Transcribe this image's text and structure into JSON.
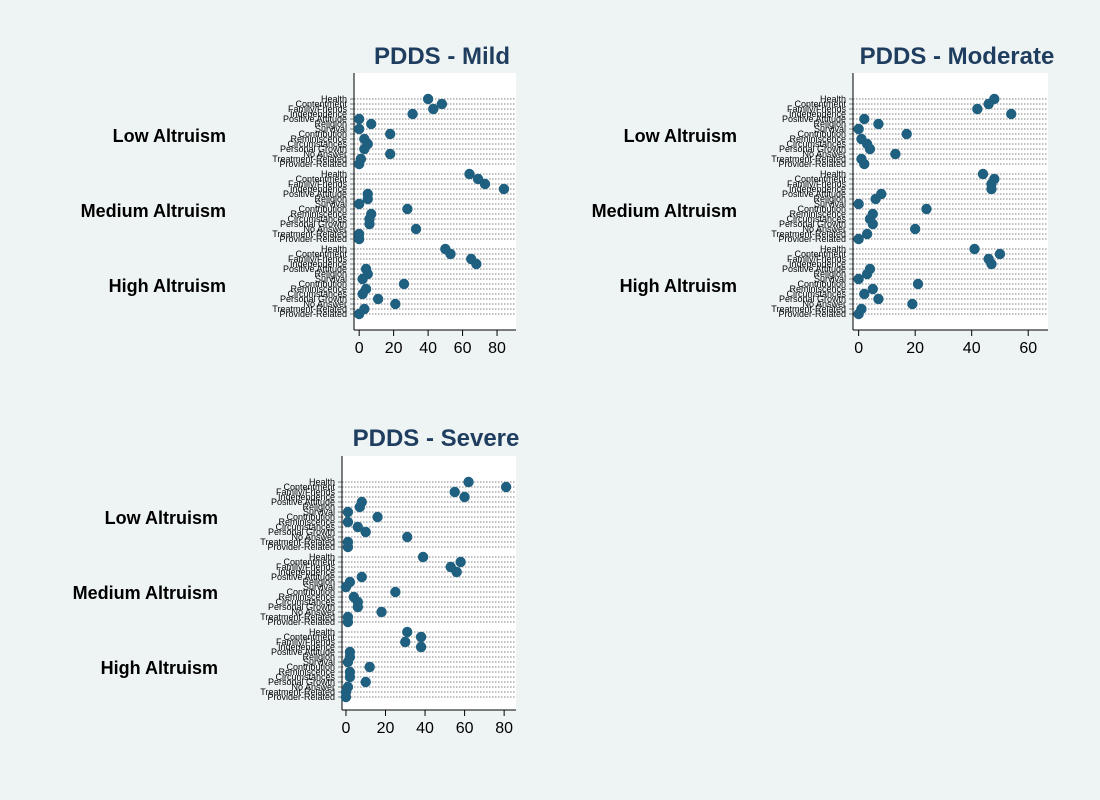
{
  "colors": {
    "background": "#eef4f4",
    "plot_background": "#ffffff",
    "marker": "#1f5f7f",
    "title": "#1f3d5e"
  },
  "chart_data": [
    {
      "type": "scatter",
      "title": "PDDS - Mild",
      "xlim": [
        -3,
        91
      ],
      "xticks": [
        0,
        20,
        40,
        60,
        80
      ],
      "categories": [
        "Health",
        "Contentment",
        "Family/Friends",
        "Independence",
        "Positive Attitude",
        "Religion",
        "Survival",
        "Contribution",
        "Reminiscence",
        "Circumstances",
        "Personal Growth",
        "No Answer",
        "Treatment-Related",
        "Provider-Related"
      ],
      "groups": [
        {
          "name": "Low Altruism",
          "values": [
            40,
            48,
            43,
            31,
            0,
            7,
            0,
            18,
            3,
            5,
            3,
            18,
            1,
            0
          ]
        },
        {
          "name": "Medium Altruism",
          "values": [
            64,
            69,
            73,
            84,
            5,
            5,
            0,
            28,
            7,
            6,
            6,
            33,
            0,
            0
          ]
        },
        {
          "name": "High Altruism",
          "values": [
            50,
            53,
            65,
            68,
            4,
            5,
            2,
            26,
            4,
            2,
            11,
            21,
            3,
            0
          ]
        }
      ]
    },
    {
      "type": "scatter",
      "title": "PDDS - Moderate",
      "xlim": [
        -2,
        67
      ],
      "xticks": [
        0,
        20,
        40,
        60
      ],
      "categories": [
        "Health",
        "Contentment",
        "Family/Friends",
        "Independence",
        "Positive Attitude",
        "Religion",
        "Survival",
        "Contribution",
        "Reminiscence",
        "Circumstances",
        "Personal Growth",
        "No Answer",
        "Treatment-Related",
        "Provider-Related"
      ],
      "groups": [
        {
          "name": "Low Altruism",
          "values": [
            48,
            46,
            42,
            54,
            2,
            7,
            0,
            17,
            1,
            3,
            4,
            13,
            1,
            2
          ]
        },
        {
          "name": "Medium Altruism",
          "values": [
            44,
            48,
            47,
            47,
            8,
            6,
            0,
            24,
            5,
            4,
            5,
            20,
            3,
            0
          ]
        },
        {
          "name": "High Altruism",
          "values": [
            41,
            50,
            46,
            47,
            4,
            3,
            0,
            21,
            5,
            2,
            7,
            19,
            1,
            0
          ]
        }
      ]
    },
    {
      "type": "scatter",
      "title": "PDDS - Severe",
      "xlim": [
        -2,
        86
      ],
      "xticks": [
        0,
        20,
        40,
        60,
        80
      ],
      "categories": [
        "Health",
        "Contentment",
        "Family/Friends",
        "Independence",
        "Positive Attitude",
        "Religion",
        "Survival",
        "Contribution",
        "Reminiscence",
        "Circumstances",
        "Personal Growth",
        "No Answer",
        "Treatment-Related",
        "Provider-Related"
      ],
      "groups": [
        {
          "name": "Low Altruism",
          "values": [
            62,
            81,
            55,
            60,
            8,
            7,
            1,
            16,
            1,
            6,
            10,
            31,
            1,
            1
          ]
        },
        {
          "name": "Medium Altruism",
          "values": [
            39,
            58,
            53,
            56,
            8,
            2,
            0,
            25,
            4,
            6,
            6,
            18,
            1,
            1
          ]
        },
        {
          "name": "High Altruism",
          "values": [
            31,
            38,
            30,
            38,
            2,
            2,
            1,
            12,
            2,
            2,
            10,
            1,
            0,
            0
          ]
        }
      ]
    }
  ]
}
